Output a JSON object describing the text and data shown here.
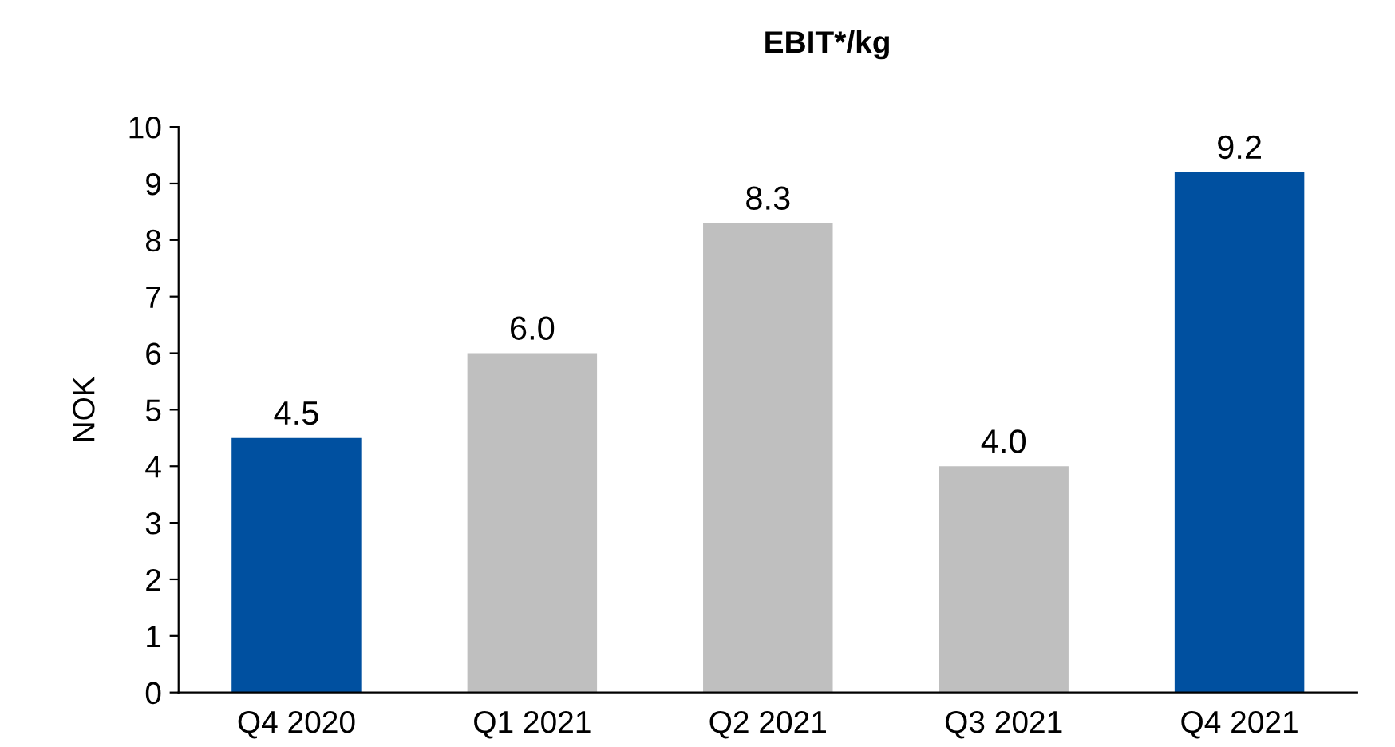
{
  "chart_data": {
    "type": "bar",
    "title": "EBIT*/kg",
    "ylabel": "NOK",
    "categories": [
      "Q4 2020",
      "Q1 2021",
      "Q2 2021",
      "Q3 2021",
      "Q4 2021"
    ],
    "values": [
      4.5,
      6.0,
      8.3,
      4.0,
      9.2
    ],
    "colors": [
      "#0050a0",
      "#bfbfbf",
      "#bfbfbf",
      "#bfbfbf",
      "#0050a0"
    ],
    "value_labels": [
      "4.5",
      "6.0",
      "8.3",
      "4.0",
      "9.2"
    ],
    "ylim": [
      0,
      10
    ],
    "yticks": [
      0,
      1,
      2,
      3,
      4,
      5,
      6,
      7,
      8,
      9,
      10
    ],
    "grid": false
  }
}
